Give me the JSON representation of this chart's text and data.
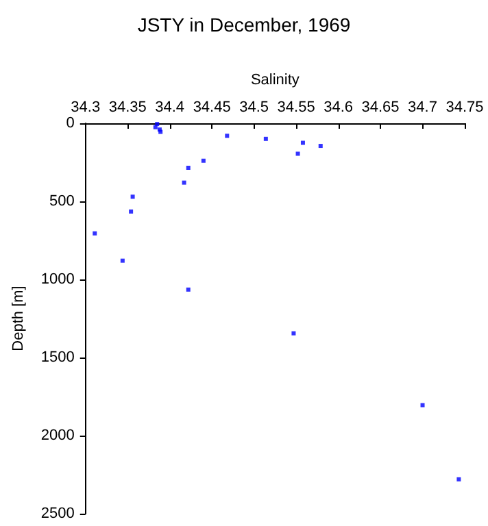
{
  "chart_data": {
    "type": "scatter",
    "title": "JSTY in December, 1969",
    "xlabel": "Salinity",
    "ylabel": "Depth [m]",
    "x": [
      34.385,
      34.383,
      34.388,
      34.389,
      34.468,
      34.514,
      34.558,
      34.579,
      34.552,
      34.44,
      34.422,
      34.417,
      34.356,
      34.354,
      34.311,
      34.344,
      34.422,
      34.547,
      34.7,
      34.743
    ],
    "series": [
      {
        "color": "#0000ff",
        "values": [
          5,
          25,
          40,
          55,
          80,
          100,
          125,
          145,
          195,
          240,
          285,
          380,
          470,
          565,
          705,
          880,
          1065,
          1345,
          1805,
          2280
        ]
      }
    ],
    "xlim": [
      34.3,
      34.75
    ],
    "xticks": [
      34.3,
      34.35,
      34.4,
      34.45,
      34.5,
      34.55,
      34.6,
      34.65,
      34.7,
      34.75
    ],
    "ylim": [
      2500,
      0
    ],
    "yticks": [
      0,
      500,
      1000,
      1500,
      2000,
      2500
    ],
    "grid": false,
    "marker": "square"
  }
}
